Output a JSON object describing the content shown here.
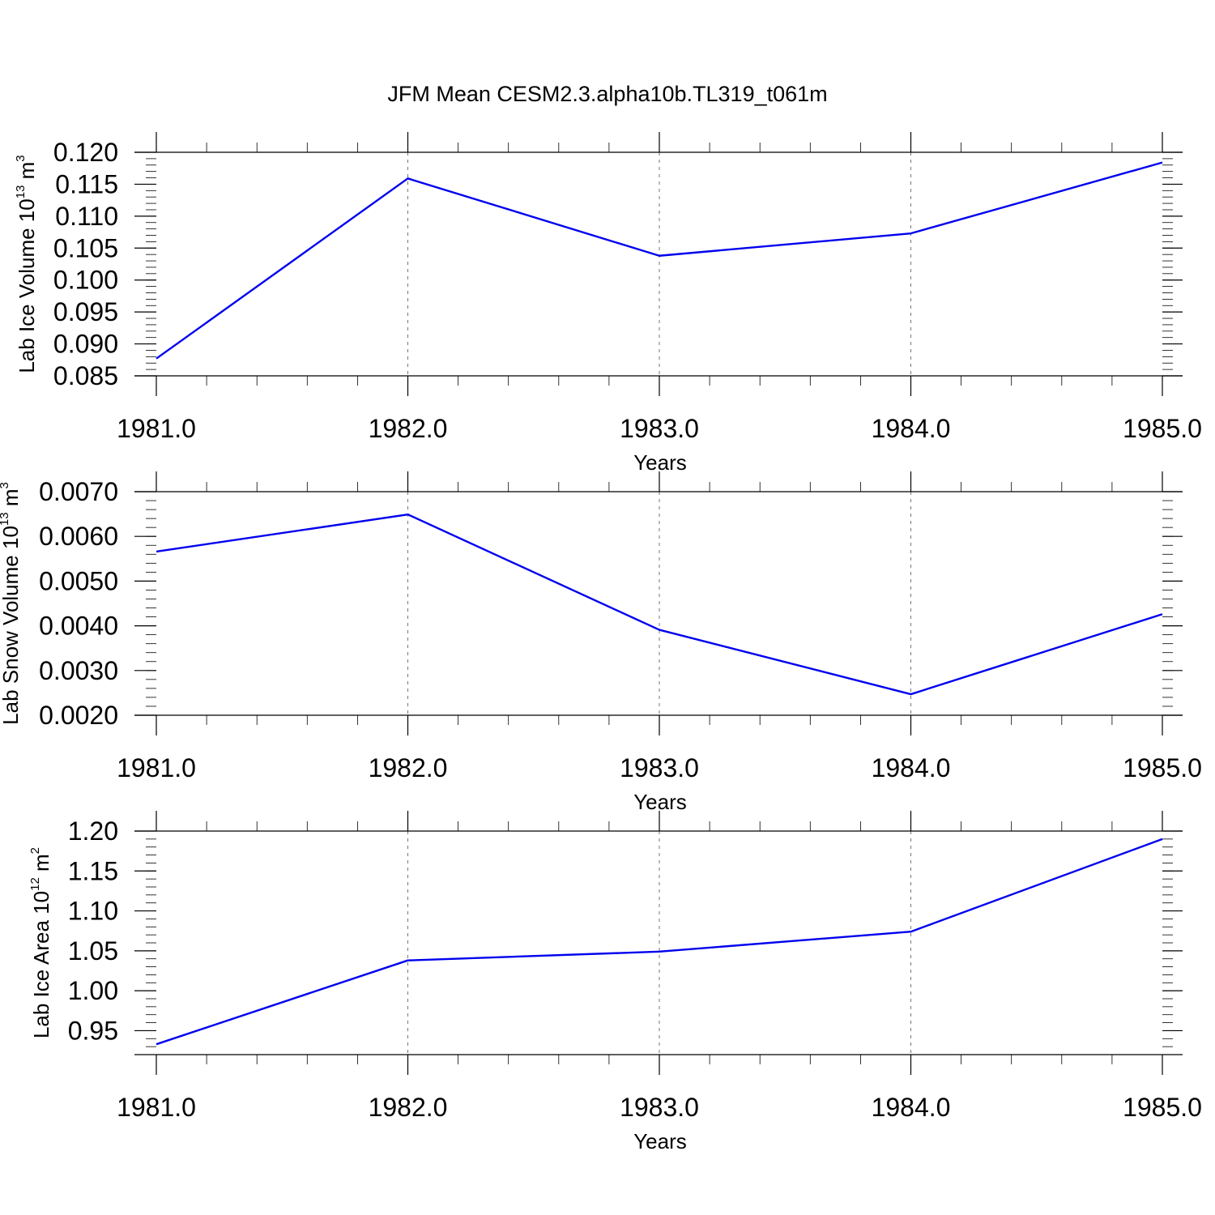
{
  "title": "JFM Mean CESM2.3.alpha10b.TL319_t061m",
  "chart_data": [
    {
      "type": "line",
      "ylabel": {
        "text": "Lab Ice Volume 10",
        "sup": "13",
        "unit": " m",
        "unit_sup": "3"
      },
      "xlabel": "Years",
      "x": [
        1981.0,
        1982.0,
        1983.0,
        1984.0,
        1985.0
      ],
      "x_ticks": [
        "1981.0",
        "1982.0",
        "1983.0",
        "1984.0",
        "1985.0"
      ],
      "xlim": [
        1981.0,
        1985.0
      ],
      "values": [
        0.0877,
        0.1159,
        0.1038,
        0.1073,
        0.1184
      ],
      "ylim": [
        0.085,
        0.12
      ],
      "y_ticks": [
        "0.085",
        "0.090",
        "0.095",
        "0.100",
        "0.105",
        "0.110",
        "0.115",
        "0.120"
      ],
      "y_tick_values": [
        0.085,
        0.09,
        0.095,
        0.1,
        0.105,
        0.11,
        0.115,
        0.12
      ],
      "grid": "vertical dashed at major x ticks",
      "line_color": "#0000ee"
    },
    {
      "type": "line",
      "ylabel": {
        "text": "Lab Snow Volume 10",
        "sup": "13",
        "unit": " m",
        "unit_sup": "3"
      },
      "xlabel": "Years",
      "x": [
        1981.0,
        1982.0,
        1983.0,
        1984.0,
        1985.0
      ],
      "x_ticks": [
        "1981.0",
        "1982.0",
        "1983.0",
        "1984.0",
        "1985.0"
      ],
      "xlim": [
        1981.0,
        1985.0
      ],
      "values": [
        0.00566,
        0.00649,
        0.00391,
        0.00247,
        0.00426
      ],
      "ylim": [
        0.002,
        0.007
      ],
      "y_ticks": [
        "0.0020",
        "0.0030",
        "0.0040",
        "0.0050",
        "0.0060",
        "0.0070"
      ],
      "y_tick_values": [
        0.002,
        0.003,
        0.004,
        0.005,
        0.006,
        0.007
      ],
      "grid": "vertical dashed at major x ticks",
      "line_color": "#0000ee"
    },
    {
      "type": "line",
      "ylabel": {
        "text": "Lab Ice Area 10",
        "sup": "12",
        "unit": " m",
        "unit_sup": "2"
      },
      "xlabel": "Years",
      "x": [
        1981.0,
        1982.0,
        1983.0,
        1984.0,
        1985.0
      ],
      "x_ticks": [
        "1981.0",
        "1982.0",
        "1983.0",
        "1984.0",
        "1985.0"
      ],
      "xlim": [
        1981.0,
        1985.0
      ],
      "values": [
        0.933,
        1.038,
        1.049,
        1.074,
        1.19
      ],
      "ylim": [
        0.92,
        1.2
      ],
      "y_ticks": [
        "0.95",
        "1.00",
        "1.05",
        "1.10",
        "1.15",
        "1.20"
      ],
      "y_tick_values": [
        0.95,
        1.0,
        1.05,
        1.1,
        1.15,
        1.2
      ],
      "grid": "vertical dashed at major x ticks",
      "line_color": "#0000ee"
    }
  ]
}
